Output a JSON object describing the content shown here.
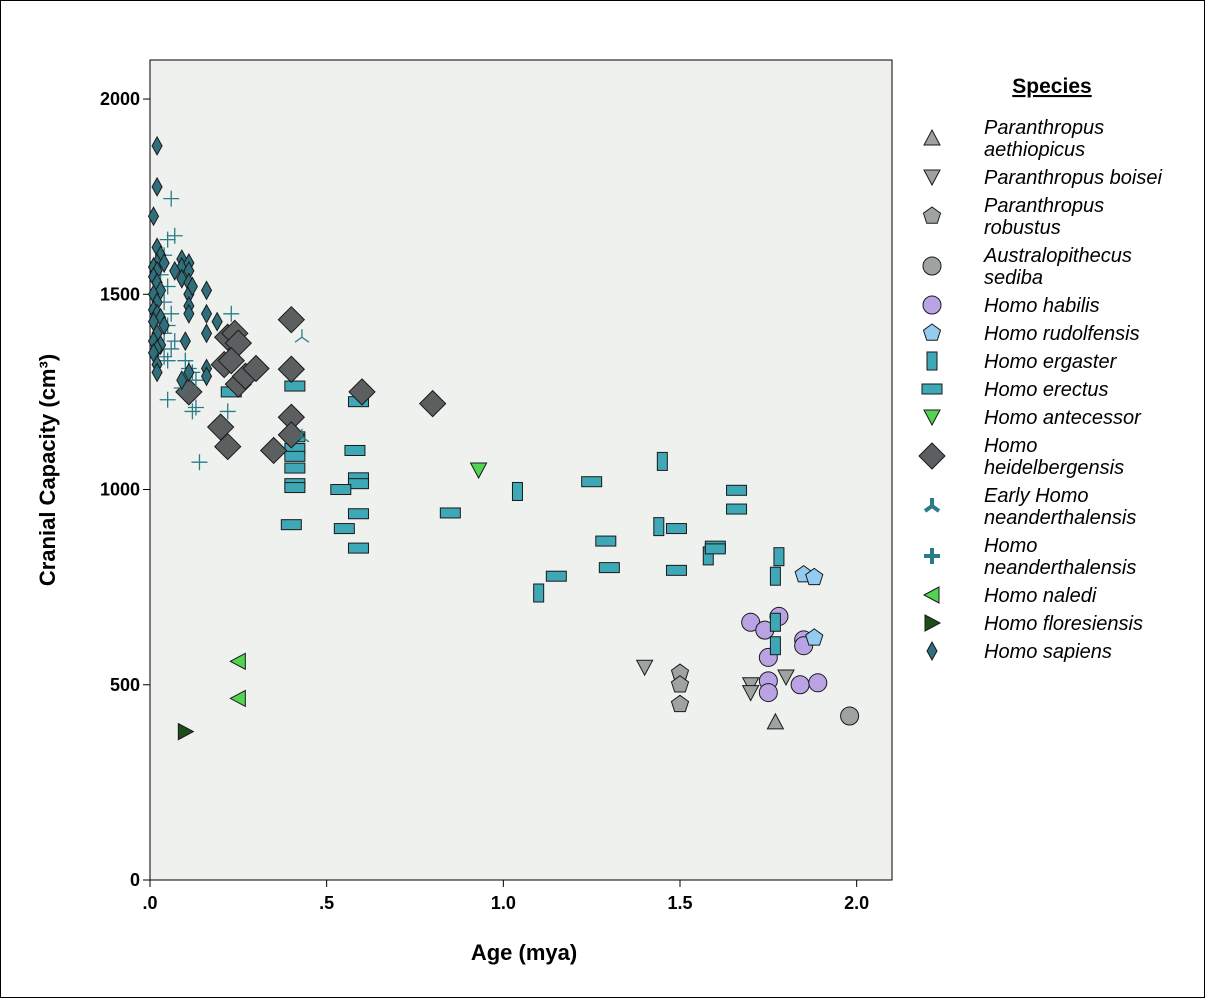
{
  "chart_data": {
    "type": "scatter",
    "title": "",
    "xlabel": "Age (mya)",
    "ylabel": "Cranial Capacity (cm³)",
    "xlim": [
      0,
      2.1
    ],
    "ylim": [
      0,
      2100
    ],
    "x_ticks": [
      0,
      0.5,
      1.0,
      1.5,
      2.0
    ],
    "x_tick_labels": [
      ".0",
      ".5",
      "1.0",
      "1.5",
      "2.0"
    ],
    "y_ticks": [
      0,
      500,
      1000,
      1500,
      2000
    ],
    "y_tick_labels": [
      "0",
      "500",
      "1000",
      "1500",
      "2000"
    ],
    "grid": false,
    "background": "#eff1ee",
    "legend": {
      "title": "Species",
      "position": "right"
    },
    "series": [
      {
        "name": "Paranthropus aethiopicus",
        "legend_lines": [
          "Paranthropus",
          "aethiopicus"
        ],
        "marker": "triangle-up",
        "color": "#9ea3a2",
        "points": [
          [
            1.77,
            405
          ]
        ]
      },
      {
        "name": "Paranthropus boisei",
        "legend_lines": [
          "Paranthropus boisei"
        ],
        "marker": "triangle-down",
        "color": "#9ea3a2",
        "points": [
          [
            1.4,
            545
          ],
          [
            1.7,
            500
          ],
          [
            1.7,
            480
          ],
          [
            1.8,
            520
          ]
        ]
      },
      {
        "name": "Paranthropus robustus",
        "legend_lines": [
          "Paranthropus",
          "robustus"
        ],
        "marker": "pentagon",
        "color": "#9ea3a2",
        "points": [
          [
            1.5,
            530
          ],
          [
            1.5,
            500
          ],
          [
            1.5,
            450
          ]
        ]
      },
      {
        "name": "Australopithecus sediba",
        "legend_lines": [
          "Australopithecus",
          "sediba"
        ],
        "marker": "circle",
        "color": "#9ea3a2",
        "points": [
          [
            1.98,
            420
          ]
        ]
      },
      {
        "name": "Homo habilis",
        "legend_lines": [
          "Homo habilis"
        ],
        "marker": "circle",
        "color": "#b9a3e4",
        "points": [
          [
            1.7,
            660
          ],
          [
            1.74,
            640
          ],
          [
            1.78,
            675
          ],
          [
            1.75,
            570
          ],
          [
            1.75,
            510
          ],
          [
            1.75,
            480
          ],
          [
            1.85,
            615
          ],
          [
            1.85,
            600
          ],
          [
            1.84,
            500
          ],
          [
            1.89,
            505
          ]
        ]
      },
      {
        "name": "Homo rudolfensis",
        "legend_lines": [
          "Homo rudolfensis"
        ],
        "marker": "pentagon",
        "color": "#93ccf0",
        "points": [
          [
            1.85,
            782
          ],
          [
            1.88,
            775
          ],
          [
            1.88,
            620
          ]
        ]
      },
      {
        "name": "Homo ergaster",
        "legend_lines": [
          "Homo ergaster"
        ],
        "marker": "rect-v",
        "color": "#3fa8b6",
        "points": [
          [
            1.78,
            828
          ],
          [
            1.77,
            778
          ],
          [
            1.77,
            660
          ],
          [
            1.77,
            600
          ],
          [
            1.58,
            830
          ],
          [
            1.45,
            1072
          ],
          [
            1.44,
            905
          ],
          [
            1.1,
            735
          ],
          [
            1.04,
            995
          ]
        ]
      },
      {
        "name": "Homo erectus",
        "legend_lines": [
          "Homo erectus"
        ],
        "marker": "rect-h",
        "color": "#3fa8b6",
        "points": [
          [
            0.23,
            1250
          ],
          [
            0.41,
            1265
          ],
          [
            0.41,
            1135
          ],
          [
            0.41,
            1105
          ],
          [
            0.41,
            1085
          ],
          [
            0.41,
            1055
          ],
          [
            0.41,
            1015
          ],
          [
            0.41,
            1005
          ],
          [
            0.4,
            910
          ],
          [
            0.59,
            1225
          ],
          [
            0.58,
            1100
          ],
          [
            0.59,
            1030
          ],
          [
            0.59,
            1015
          ],
          [
            0.59,
            938
          ],
          [
            0.59,
            850
          ],
          [
            0.54,
            1000
          ],
          [
            0.55,
            900
          ],
          [
            0.85,
            940
          ],
          [
            1.15,
            778
          ],
          [
            1.25,
            1020
          ],
          [
            1.29,
            868
          ],
          [
            1.3,
            800
          ],
          [
            1.49,
            900
          ],
          [
            1.49,
            793
          ],
          [
            1.6,
            855
          ],
          [
            1.6,
            848
          ],
          [
            1.66,
            998
          ],
          [
            1.66,
            950
          ]
        ]
      },
      {
        "name": "Homo antecessor",
        "legend_lines": [
          "Homo antecessor"
        ],
        "marker": "triangle-down",
        "color": "#52d352",
        "points": [
          [
            0.93,
            1050
          ]
        ]
      },
      {
        "name": "Homo heidelbergensis",
        "legend_lines": [
          "Homo",
          "heidelbergensis"
        ],
        "marker": "diamond",
        "color": "#5b5f60",
        "points": [
          [
            0.4,
            1435
          ],
          [
            0.4,
            1308
          ],
          [
            0.4,
            1185
          ],
          [
            0.4,
            1140
          ],
          [
            0.22,
            1390
          ],
          [
            0.24,
            1400
          ],
          [
            0.25,
            1375
          ],
          [
            0.21,
            1320
          ],
          [
            0.23,
            1330
          ],
          [
            0.25,
            1270
          ],
          [
            0.27,
            1290
          ],
          [
            0.3,
            1310
          ],
          [
            0.2,
            1160
          ],
          [
            0.22,
            1110
          ],
          [
            0.35,
            1100
          ],
          [
            0.6,
            1250
          ],
          [
            0.8,
            1220
          ],
          [
            0.11,
            1250
          ]
        ]
      },
      {
        "name": "Early Homo neanderthalensis",
        "legend_lines": [
          "Early Homo",
          "neanderthalensis"
        ],
        "marker": "tri-star",
        "color": "#2b7b89",
        "points": [
          [
            0.43,
            1390
          ],
          [
            0.43,
            1135
          ]
        ]
      },
      {
        "name": "Homo neanderthalensis",
        "legend_lines": [
          "Homo",
          "neanderthalensis"
        ],
        "marker": "cross",
        "color": "#2b7b89",
        "points": [
          [
            0.06,
            1745
          ],
          [
            0.07,
            1650
          ],
          [
            0.05,
            1640
          ],
          [
            0.04,
            1600
          ],
          [
            0.03,
            1550
          ],
          [
            0.05,
            1520
          ],
          [
            0.04,
            1480
          ],
          [
            0.06,
            1450
          ],
          [
            0.05,
            1420
          ],
          [
            0.04,
            1400
          ],
          [
            0.07,
            1380
          ],
          [
            0.06,
            1360
          ],
          [
            0.04,
            1340
          ],
          [
            0.05,
            1330
          ],
          [
            0.1,
            1330
          ],
          [
            0.11,
            1310
          ],
          [
            0.12,
            1300
          ],
          [
            0.13,
            1280
          ],
          [
            0.09,
            1260
          ],
          [
            0.05,
            1230
          ],
          [
            0.13,
            1210
          ],
          [
            0.12,
            1200
          ],
          [
            0.22,
            1200
          ],
          [
            0.14,
            1070
          ],
          [
            0.23,
            1450
          ]
        ]
      },
      {
        "name": "Homo naledi",
        "legend_lines": [
          "Homo naledi"
        ],
        "marker": "triangle-left",
        "color": "#52d352",
        "points": [
          [
            0.25,
            560
          ],
          [
            0.25,
            465
          ]
        ]
      },
      {
        "name": "Homo floresiensis",
        "legend_lines": [
          "Homo floresiensis"
        ],
        "marker": "triangle-right",
        "color": "#1c4e1c",
        "points": [
          [
            0.1,
            380
          ]
        ]
      },
      {
        "name": "Homo sapiens",
        "legend_lines": [
          "Homo sapiens"
        ],
        "marker": "diamond-thin",
        "color": "#2f6e7b",
        "points": [
          [
            0.02,
            1880
          ],
          [
            0.02,
            1775
          ],
          [
            0.01,
            1700
          ],
          [
            0.02,
            1620
          ],
          [
            0.03,
            1600
          ],
          [
            0.02,
            1580
          ],
          [
            0.01,
            1570
          ],
          [
            0.04,
            1580
          ],
          [
            0.02,
            1560
          ],
          [
            0.01,
            1545
          ],
          [
            0.02,
            1530
          ],
          [
            0.03,
            1510
          ],
          [
            0.01,
            1500
          ],
          [
            0.02,
            1480
          ],
          [
            0.01,
            1460
          ],
          [
            0.02,
            1450
          ],
          [
            0.03,
            1440
          ],
          [
            0.01,
            1430
          ],
          [
            0.04,
            1420
          ],
          [
            0.02,
            1400
          ],
          [
            0.01,
            1380
          ],
          [
            0.03,
            1370
          ],
          [
            0.02,
            1360
          ],
          [
            0.01,
            1350
          ],
          [
            0.02,
            1320
          ],
          [
            0.02,
            1300
          ],
          [
            0.09,
            1590
          ],
          [
            0.09,
            1570
          ],
          [
            0.09,
            1540
          ],
          [
            0.11,
            1580
          ],
          [
            0.11,
            1560
          ],
          [
            0.11,
            1530
          ],
          [
            0.11,
            1500
          ],
          [
            0.11,
            1470
          ],
          [
            0.11,
            1450
          ],
          [
            0.12,
            1520
          ],
          [
            0.16,
            1510
          ],
          [
            0.16,
            1450
          ],
          [
            0.16,
            1400
          ],
          [
            0.1,
            1380
          ],
          [
            0.11,
            1300
          ],
          [
            0.09,
            1280
          ],
          [
            0.16,
            1310
          ],
          [
            0.16,
            1290
          ],
          [
            0.19,
            1430
          ],
          [
            0.07,
            1560
          ]
        ]
      }
    ]
  }
}
